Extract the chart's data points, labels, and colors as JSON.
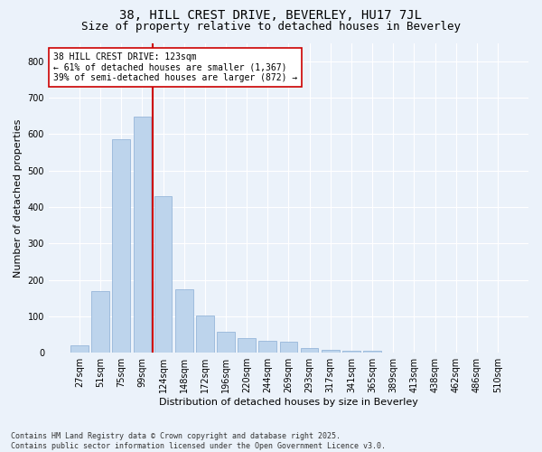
{
  "title1": "38, HILL CREST DRIVE, BEVERLEY, HU17 7JL",
  "title2": "Size of property relative to detached houses in Beverley",
  "xlabel": "Distribution of detached houses by size in Beverley",
  "ylabel": "Number of detached properties",
  "categories": [
    "27sqm",
    "51sqm",
    "75sqm",
    "99sqm",
    "124sqm",
    "148sqm",
    "172sqm",
    "196sqm",
    "220sqm",
    "244sqm",
    "269sqm",
    "293sqm",
    "317sqm",
    "341sqm",
    "365sqm",
    "389sqm",
    "413sqm",
    "438sqm",
    "462sqm",
    "486sqm",
    "510sqm"
  ],
  "values": [
    20,
    170,
    585,
    648,
    430,
    175,
    103,
    57,
    41,
    33,
    30,
    14,
    8,
    5,
    5,
    0,
    0,
    0,
    0,
    0,
    0
  ],
  "bar_color": "#BDD4EC",
  "bar_edge_color": "#8AADD4",
  "background_color": "#EBF2FA",
  "grid_color": "#FFFFFF",
  "vline_color": "#CC0000",
  "vline_x_index": 3.5,
  "annotation_title": "38 HILL CREST DRIVE: 123sqm",
  "annotation_line1": "← 61% of detached houses are smaller (1,367)",
  "annotation_line2": "39% of semi-detached houses are larger (872) →",
  "ylim": [
    0,
    850
  ],
  "yticks": [
    0,
    100,
    200,
    300,
    400,
    500,
    600,
    700,
    800
  ],
  "footer1": "Contains HM Land Registry data © Crown copyright and database right 2025.",
  "footer2": "Contains public sector information licensed under the Open Government Licence v3.0.",
  "title1_fontsize": 10,
  "title2_fontsize": 9,
  "xlabel_fontsize": 8,
  "ylabel_fontsize": 8,
  "tick_fontsize": 7,
  "annotation_fontsize": 7,
  "footer_fontsize": 6
}
